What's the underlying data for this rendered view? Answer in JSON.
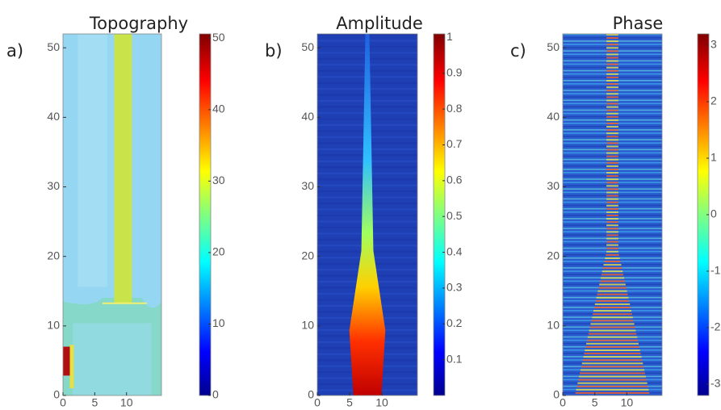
{
  "chart_data": [
    {
      "type": "heatmap",
      "title": "Topography",
      "panel_label": "a)",
      "xlim": [
        0,
        15.5
      ],
      "ylim": [
        0,
        52
      ],
      "xticks": [
        0,
        5,
        10
      ],
      "yticks": [
        0,
        10,
        20,
        30,
        40,
        50
      ],
      "clim": [
        0,
        50.6
      ],
      "cticks": [
        0,
        10,
        20,
        30,
        40,
        50
      ],
      "colormap": "jet"
    },
    {
      "type": "heatmap",
      "title": "Amplitude",
      "panel_label": "b)",
      "xlim": [
        0,
        15.5
      ],
      "ylim": [
        0,
        52
      ],
      "xticks": [
        0,
        5,
        10
      ],
      "yticks": [
        0,
        10,
        20,
        30,
        40,
        50
      ],
      "clim": [
        0,
        1.01
      ],
      "cticks": [
        0.1,
        0.2,
        0.3,
        0.4,
        0.5,
        0.6,
        0.7,
        0.8,
        0.9,
        1
      ],
      "colormap": "jet"
    },
    {
      "type": "heatmap",
      "title": "Phase",
      "panel_label": "c)",
      "xlim": [
        0,
        15.5
      ],
      "ylim": [
        0,
        52
      ],
      "xticks": [
        0,
        5,
        10
      ],
      "yticks": [
        0,
        10,
        20,
        30,
        40,
        50
      ],
      "clim": [
        -3.2,
        3.2
      ],
      "cticks": [
        -3,
        -2,
        -1,
        0,
        1,
        2,
        3
      ],
      "colormap": "jet"
    }
  ]
}
